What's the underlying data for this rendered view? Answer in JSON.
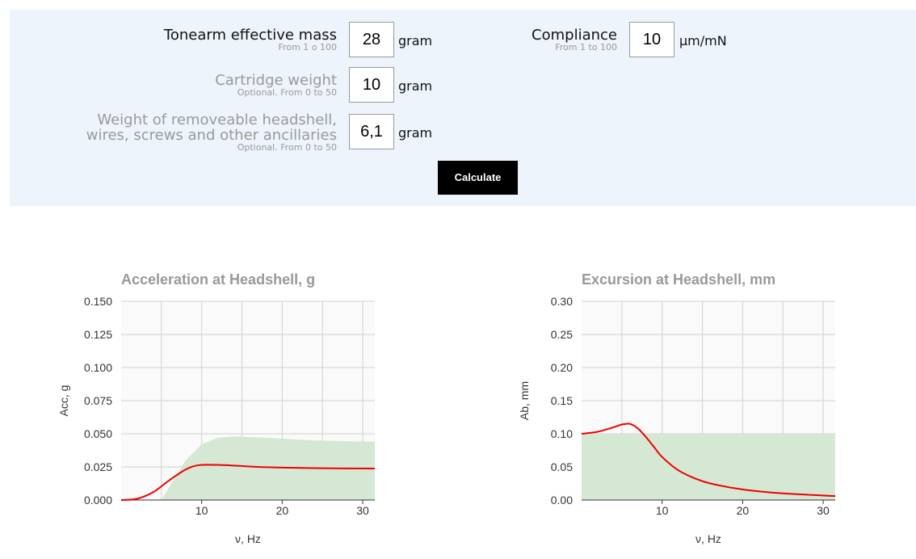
{
  "form": {
    "tonearm": {
      "label": "Tonearm effective mass",
      "hint": "From 1 o 100",
      "value": "28",
      "unit": "gram"
    },
    "compliance": {
      "label": "Compliance",
      "hint": "From 1 to 100",
      "value": "10",
      "unit": "µm/mN"
    },
    "cartridge": {
      "label": "Cartridge weight",
      "hint": "Optional. From 0 to 50",
      "value": "10",
      "unit": "gram"
    },
    "headshell": {
      "label_line1": "Weight of removeable headshell,",
      "label_line2": "wires, screws and other ancillaries",
      "hint": "Optional. From 0 to 50",
      "value": "6,1",
      "unit": "gram"
    },
    "calculate_label": "Calculate"
  },
  "colors": {
    "panel_bg": "#eef4fc",
    "curve": "#ee0000",
    "safe_area": "#d5e8d4",
    "grid": "#d0d0d0",
    "title": "#999999"
  },
  "chart_data": [
    {
      "type": "line",
      "title": "Acceleration at Headshell, g",
      "xlabel": "ν, Hz",
      "ylabel": "Acc, g",
      "xlim": [
        0,
        31.5
      ],
      "ylim": [
        0,
        0.15
      ],
      "xticks": [
        "10",
        "20",
        "30"
      ],
      "xtick_values": [
        10,
        20,
        30
      ],
      "yticks": [
        "0.000",
        "0.025",
        "0.050",
        "0.075",
        "0.100",
        "0.125",
        "0.150"
      ],
      "ytick_values": [
        0,
        0.025,
        0.05,
        0.075,
        0.1,
        0.125,
        0.15
      ],
      "grid": true,
      "series": [
        {
          "values": [
            [
              0,
              0
            ],
            [
              2,
              0.001
            ],
            [
              4,
              0.006
            ],
            [
              6,
              0.015
            ],
            [
              8,
              0.023
            ],
            [
              9,
              0.0255
            ],
            [
              10,
              0.0265
            ],
            [
              12,
              0.0265
            ],
            [
              14,
              0.026
            ],
            [
              17,
              0.025
            ],
            [
              20,
              0.0245
            ],
            [
              25,
              0.024
            ],
            [
              31.5,
              0.0238
            ]
          ]
        }
      ],
      "band": [
        [
          5,
          0
        ],
        [
          6,
          0.01
        ],
        [
          8,
          0.03
        ],
        [
          10,
          0.042
        ],
        [
          12,
          0.047
        ],
        [
          14,
          0.048
        ],
        [
          18,
          0.047
        ],
        [
          24,
          0.045
        ],
        [
          31.5,
          0.044
        ]
      ]
    },
    {
      "type": "line",
      "title": "Excursion at Headshell, mm",
      "xlabel": "ν, Hz",
      "ylabel": "Ab, mm",
      "xlim": [
        0,
        31.5
      ],
      "ylim": [
        0,
        0.3
      ],
      "xticks": [
        "10",
        "20",
        "30"
      ],
      "xtick_values": [
        10,
        20,
        30
      ],
      "yticks": [
        "0.00",
        "0.05",
        "0.10",
        "0.15",
        "0.20",
        "0.25",
        "0.30"
      ],
      "ytick_values": [
        0,
        0.05,
        0.1,
        0.15,
        0.2,
        0.25,
        0.3
      ],
      "grid": true,
      "series": [
        {
          "values": [
            [
              0,
              0.1
            ],
            [
              2,
              0.103
            ],
            [
              4,
              0.11
            ],
            [
              5,
              0.114
            ],
            [
              6,
              0.115
            ],
            [
              7,
              0.108
            ],
            [
              8,
              0.095
            ],
            [
              9,
              0.08
            ],
            [
              10,
              0.065
            ],
            [
              12,
              0.045
            ],
            [
              14,
              0.033
            ],
            [
              16,
              0.025
            ],
            [
              20,
              0.016
            ],
            [
              25,
              0.01
            ],
            [
              31.5,
              0.006
            ]
          ]
        }
      ],
      "band": [
        [
          0,
          0.1
        ],
        [
          31.5,
          0.1
        ]
      ]
    }
  ]
}
